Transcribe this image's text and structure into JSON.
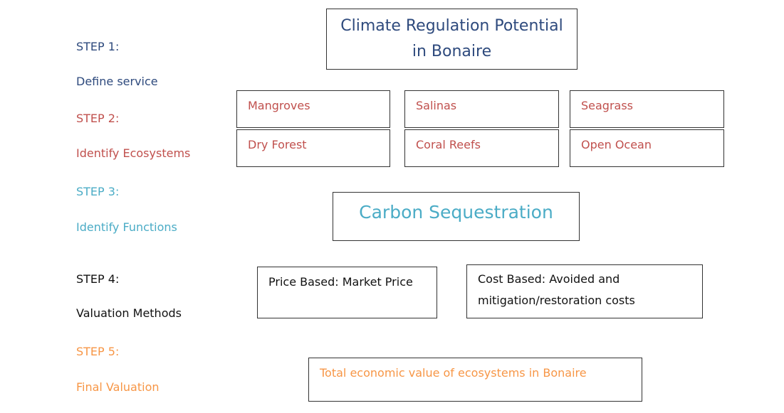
{
  "steps": [
    {
      "label": "STEP 1:",
      "description": "Define service"
    },
    {
      "label": "STEP 2:",
      "description": "Identify Ecosystems"
    },
    {
      "label": "STEP 3:",
      "description": "Identify Functions"
    },
    {
      "label": "STEP 4:",
      "description": "Valuation Methods"
    },
    {
      "label": "STEP 5:",
      "description": "Final Valuation"
    }
  ],
  "service": {
    "lines": [
      "Climate Regulation Potential",
      "in Bonaire"
    ]
  },
  "ecosystems": [
    "Mangroves",
    "Salinas",
    "Seagrass",
    "Dry Forest",
    "Coral Reefs",
    "Open Ocean"
  ],
  "function": "Carbon Sequestration",
  "methods": [
    {
      "lines": [
        "Price Based: Market Price"
      ]
    },
    {
      "lines": [
        "Cost Based: Avoided and",
        "mitigation/restoration costs"
      ]
    }
  ],
  "final": "Total economic value of ecosystems in Bonaire"
}
